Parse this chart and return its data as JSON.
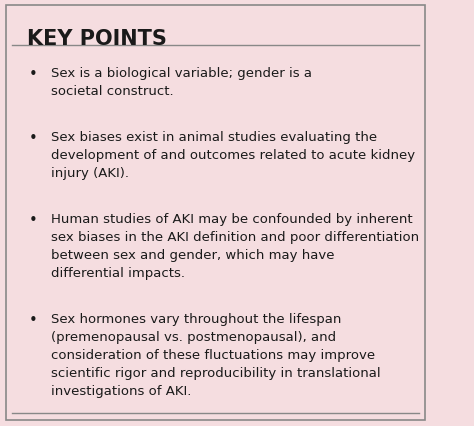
{
  "title": "KEY POINTS",
  "background_color": "#f5dde0",
  "border_color": "#888888",
  "title_color": "#1a1a1a",
  "text_color": "#1a1a1a",
  "title_fontsize": 15,
  "body_fontsize": 9.5,
  "bullet_points": [
    "Sex is a biological variable; gender is a\nsocietal construct.",
    "Sex biases exist in animal studies evaluating the\ndevelopment of and outcomes related to acute kidney\ninjury (AKI).",
    "Human studies of AKI may be confounded by inherent\nsex biases in the AKI definition and poor differentiation\nbetween sex and gender, which may have\ndifferential impacts.",
    "Sex hormones vary throughout the lifespan\n(premenopausal vs. postmenopausal), and\nconsideration of these fluctuations may improve\nscientific rigor and reproducibility in translational\ninvestigations of AKI."
  ],
  "figsize": [
    4.74,
    4.27
  ],
  "dpi": 100
}
